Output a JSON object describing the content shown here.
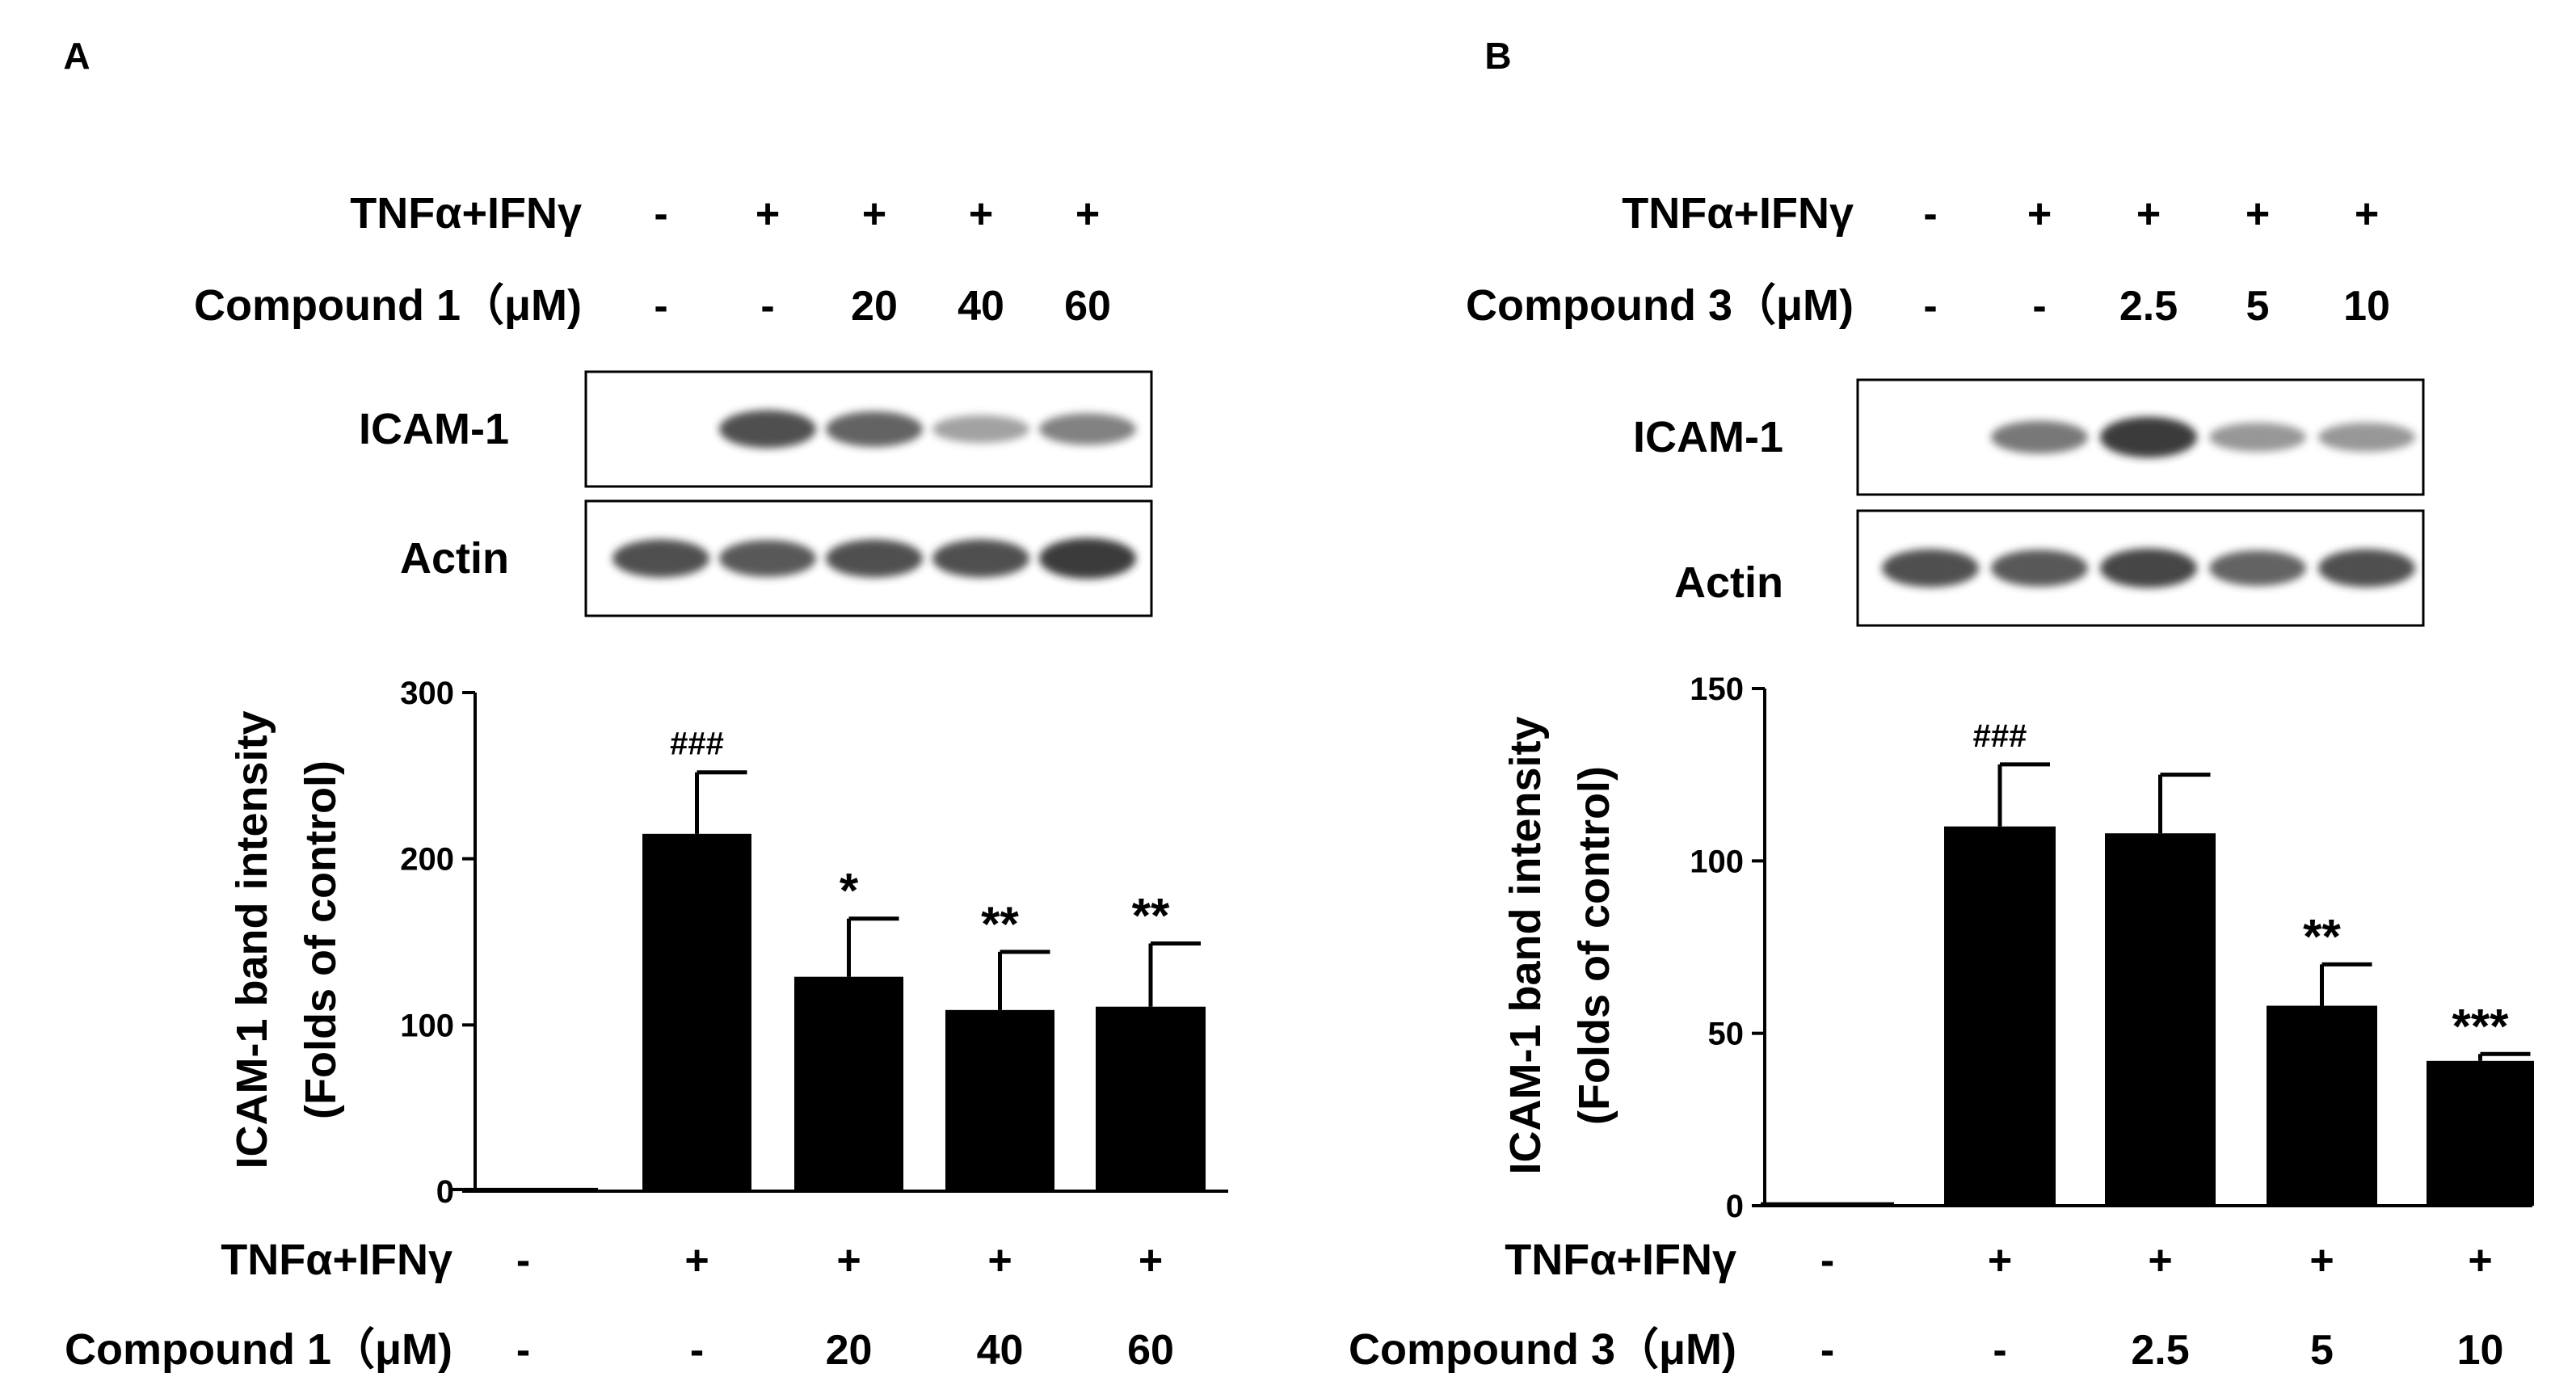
{
  "chart_data": [
    {
      "panel_label": "A",
      "type": "bar",
      "ylabel": "ICAM-1 band intensity",
      "ylabel2": "(Folds of control)",
      "ylim": [
        0,
        300
      ],
      "yticks": [
        0,
        100,
        200,
        300
      ],
      "treatment_label": "TNFα+IFNγ",
      "treatment": [
        "-",
        "+",
        "+",
        "+",
        "+"
      ],
      "compound_label": "Compound 1（μM)",
      "compound": [
        "-",
        "-",
        "20",
        "40",
        "60"
      ],
      "values": [
        2,
        215,
        129,
        109,
        111
      ],
      "errors": [
        0,
        37,
        35,
        35,
        38
      ],
      "annotations": [
        "",
        "###",
        "*",
        "**",
        "**"
      ],
      "blot_labels": [
        "ICAM-1",
        "Actin"
      ],
      "blot_intensity": {
        "ICAM-1": [
          0.0,
          0.85,
          0.75,
          0.45,
          0.6
        ],
        "Actin": [
          0.85,
          0.8,
          0.85,
          0.85,
          0.95
        ]
      }
    },
    {
      "panel_label": "B",
      "type": "bar",
      "ylabel": "ICAM-1 band intensity",
      "ylabel2": "(Folds of control)",
      "ylim": [
        0,
        150
      ],
      "yticks": [
        0,
        50,
        100,
        150
      ],
      "treatment_label": "TNFα+IFNγ",
      "treatment": [
        "-",
        "+",
        "+",
        "+",
        "+"
      ],
      "compound_label": "Compound 3（μM)",
      "compound": [
        "-",
        "-",
        "2.5",
        "5",
        "10"
      ],
      "values": [
        1,
        110,
        108,
        58,
        42
      ],
      "errors": [
        0,
        18,
        17,
        12,
        2
      ],
      "annotations": [
        "",
        "###",
        "",
        "**",
        "***"
      ],
      "blot_labels": [
        "ICAM-1",
        "Actin"
      ],
      "blot_intensity": {
        "ICAM-1": [
          0.0,
          0.65,
          0.95,
          0.5,
          0.5
        ],
        "Actin": [
          0.85,
          0.8,
          0.9,
          0.75,
          0.85
        ]
      }
    }
  ]
}
